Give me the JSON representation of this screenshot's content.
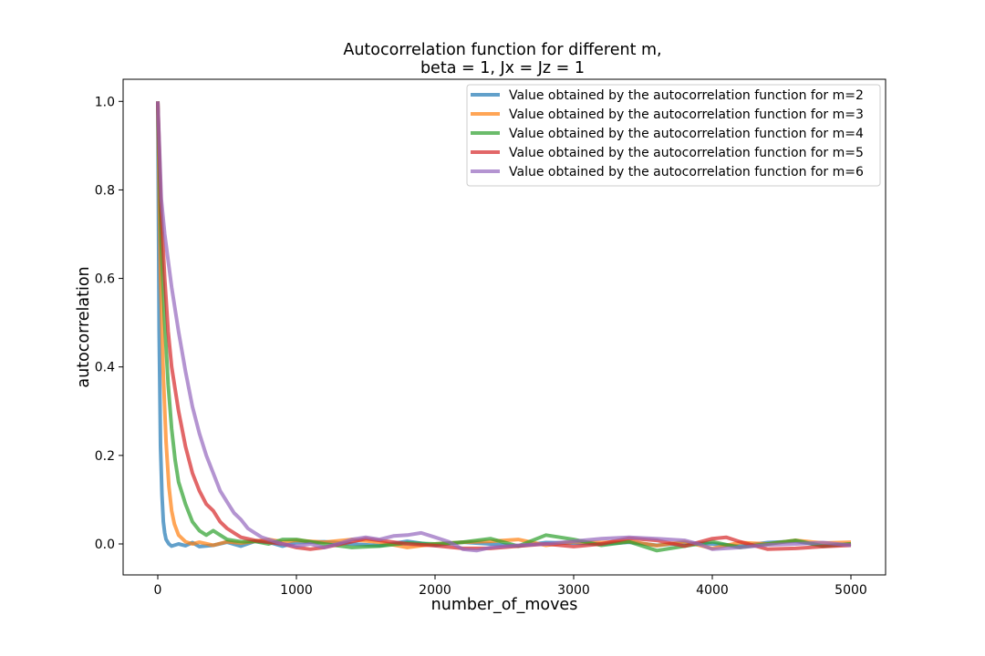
{
  "chart_data": {
    "type": "line",
    "title_lines": [
      "Autocorrelation function for different m,",
      "beta = 1, Jx = Jz = 1"
    ],
    "xlabel": "number_of_moves",
    "ylabel": "autocorrelation",
    "xlim": [
      -250,
      5250
    ],
    "ylim": [
      -0.07,
      1.05
    ],
    "xticks": [
      0,
      1000,
      2000,
      3000,
      4000,
      5000
    ],
    "xtick_labels": [
      "0",
      "1000",
      "2000",
      "3000",
      "4000",
      "5000"
    ],
    "yticks": [
      0.0,
      0.2,
      0.4,
      0.6,
      0.8,
      1.0
    ],
    "ytick_labels": [
      "0.0",
      "0.2",
      "0.4",
      "0.6",
      "0.8",
      "1.0"
    ],
    "grid": false,
    "legend_position": "top-right",
    "series": [
      {
        "name": "Value obtained by the autocorrelation function for m=2",
        "color": "#1f77b4",
        "x": [
          0,
          10,
          20,
          30,
          40,
          50,
          60,
          80,
          100,
          150,
          200,
          250,
          300,
          400,
          500,
          600,
          700,
          800,
          900,
          1000,
          1200,
          1400,
          1600,
          1800,
          2000,
          2200,
          2400,
          2600,
          2800,
          3000,
          3200,
          3400,
          3600,
          3800,
          4000,
          4200,
          4400,
          4600,
          4800,
          5000
        ],
        "y": [
          1.0,
          0.48,
          0.22,
          0.11,
          0.05,
          0.025,
          0.01,
          0.0,
          -0.005,
          0.0,
          -0.004,
          0.003,
          -0.006,
          -0.003,
          0.004,
          -0.005,
          0.006,
          0.004,
          -0.005,
          0.003,
          0.005,
          0.0,
          -0.004,
          0.006,
          -0.003,
          0.004,
          0.0,
          -0.005,
          0.003,
          0.002,
          0.0,
          0.004,
          -0.003,
          0.002,
          0.0,
          -0.005,
          0.003,
          0.006,
          -0.004,
          0.0
        ]
      },
      {
        "name": "Value obtained by the autocorrelation function for m=3",
        "color": "#ff7f0e",
        "x": [
          0,
          20,
          40,
          60,
          80,
          100,
          120,
          150,
          200,
          250,
          300,
          400,
          500,
          600,
          700,
          800,
          900,
          1000,
          1200,
          1400,
          1600,
          1800,
          2000,
          2200,
          2400,
          2600,
          2800,
          3000,
          3200,
          3400,
          3600,
          3800,
          4000,
          4200,
          4400,
          4600,
          4800,
          5000
        ],
        "y": [
          1.0,
          0.6,
          0.38,
          0.23,
          0.13,
          0.075,
          0.045,
          0.02,
          0.005,
          0.0,
          0.004,
          -0.003,
          0.005,
          0.002,
          0.006,
          0.01,
          0.005,
          0.008,
          0.004,
          0.01,
          0.004,
          -0.008,
          0.0,
          0.004,
          0.006,
          0.01,
          -0.003,
          0.005,
          0.003,
          0.006,
          -0.004,
          0.005,
          -0.01,
          0.003,
          0.0,
          0.008,
          0.002,
          0.004
        ]
      },
      {
        "name": "Value obtained by the autocorrelation function for m=4",
        "color": "#2ca02c",
        "x": [
          0,
          25,
          50,
          75,
          100,
          125,
          150,
          200,
          250,
          300,
          350,
          400,
          450,
          500,
          600,
          700,
          800,
          900,
          1000,
          1100,
          1200,
          1400,
          1600,
          1800,
          2000,
          2200,
          2400,
          2600,
          2800,
          2900,
          3000,
          3200,
          3400,
          3600,
          3800,
          4000,
          4200,
          4400,
          4600,
          4800,
          5000
        ],
        "y": [
          1.0,
          0.68,
          0.5,
          0.36,
          0.26,
          0.19,
          0.14,
          0.09,
          0.05,
          0.03,
          0.02,
          0.03,
          0.02,
          0.01,
          0.005,
          0.006,
          0.0,
          0.01,
          0.01,
          0.005,
          0.0,
          -0.008,
          -0.005,
          0.002,
          0.0,
          0.004,
          0.012,
          -0.005,
          0.02,
          0.015,
          0.01,
          -0.003,
          0.005,
          -0.015,
          -0.005,
          0.005,
          -0.008,
          0.0,
          0.008,
          -0.005,
          0.0
        ]
      },
      {
        "name": "Value obtained by the autocorrelation function for m=5",
        "color": "#d62728",
        "x": [
          0,
          25,
          50,
          75,
          100,
          150,
          200,
          250,
          300,
          350,
          400,
          450,
          500,
          550,
          600,
          700,
          800,
          900,
          1000,
          1100,
          1200,
          1400,
          1500,
          1600,
          1800,
          2000,
          2200,
          2400,
          2600,
          2800,
          3000,
          3200,
          3400,
          3600,
          3800,
          4000,
          4100,
          4200,
          4400,
          4600,
          4800,
          5000
        ],
        "y": [
          1.0,
          0.75,
          0.6,
          0.48,
          0.4,
          0.3,
          0.22,
          0.16,
          0.12,
          0.09,
          0.075,
          0.05,
          0.035,
          0.025,
          0.015,
          0.008,
          0.004,
          0.0,
          -0.008,
          -0.012,
          -0.008,
          0.005,
          0.012,
          0.008,
          0.0,
          -0.004,
          -0.01,
          -0.01,
          -0.005,
          0.0,
          -0.006,
          0.0,
          0.013,
          0.008,
          -0.005,
          0.012,
          0.015,
          0.005,
          -0.012,
          -0.01,
          -0.006,
          -0.003
        ]
      },
      {
        "name": "Value obtained by the autocorrelation function for m=6",
        "color": "#9467bd",
        "x": [
          0,
          25,
          50,
          100,
          150,
          200,
          250,
          300,
          350,
          400,
          450,
          500,
          550,
          600,
          650,
          700,
          750,
          800,
          900,
          1000,
          1100,
          1200,
          1300,
          1400,
          1500,
          1600,
          1700,
          1800,
          1900,
          2000,
          2100,
          2200,
          2300,
          2400,
          2600,
          2800,
          3000,
          3200,
          3400,
          3600,
          3800,
          3900,
          4000,
          4200,
          4400,
          4600,
          4800,
          5000
        ],
        "y": [
          1.0,
          0.78,
          0.7,
          0.58,
          0.48,
          0.39,
          0.31,
          0.25,
          0.2,
          0.16,
          0.12,
          0.095,
          0.07,
          0.055,
          0.035,
          0.025,
          0.015,
          0.01,
          0.0,
          -0.005,
          0.0,
          -0.008,
          0.0,
          0.01,
          0.015,
          0.01,
          0.018,
          0.02,
          0.025,
          0.015,
          0.005,
          -0.012,
          -0.015,
          -0.008,
          -0.003,
          0.0,
          0.006,
          0.012,
          0.015,
          0.012,
          0.008,
          0.0,
          -0.012,
          -0.008,
          -0.002,
          0.0,
          0.003,
          -0.003
        ]
      }
    ]
  }
}
